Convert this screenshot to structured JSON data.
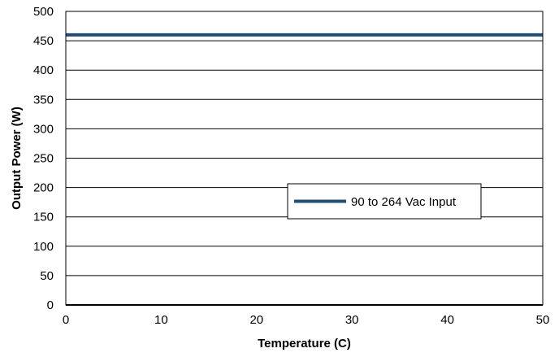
{
  "chart_data": {
    "type": "line",
    "title": "",
    "xlabel": "Temperature (C)",
    "ylabel": "Output Power (W)",
    "xlim": [
      0,
      50
    ],
    "ylim": [
      0,
      500
    ],
    "xticks": [
      0,
      10,
      20,
      30,
      40,
      50
    ],
    "yticks": [
      0,
      50,
      100,
      150,
      200,
      250,
      300,
      350,
      400,
      450,
      500
    ],
    "x_tick_labels": [
      "0",
      "10",
      "20",
      "30",
      "40",
      "50"
    ],
    "y_tick_labels": [
      "0",
      "50",
      "100",
      "150",
      "200",
      "250",
      "300",
      "350",
      "400",
      "450",
      "500"
    ],
    "grid": "horizontal",
    "legend_position": "center-right",
    "series": [
      {
        "name": "90 to 264 Vac Input",
        "color": "#1f4e79",
        "x": [
          0,
          50
        ],
        "y": [
          460,
          460
        ]
      }
    ]
  }
}
